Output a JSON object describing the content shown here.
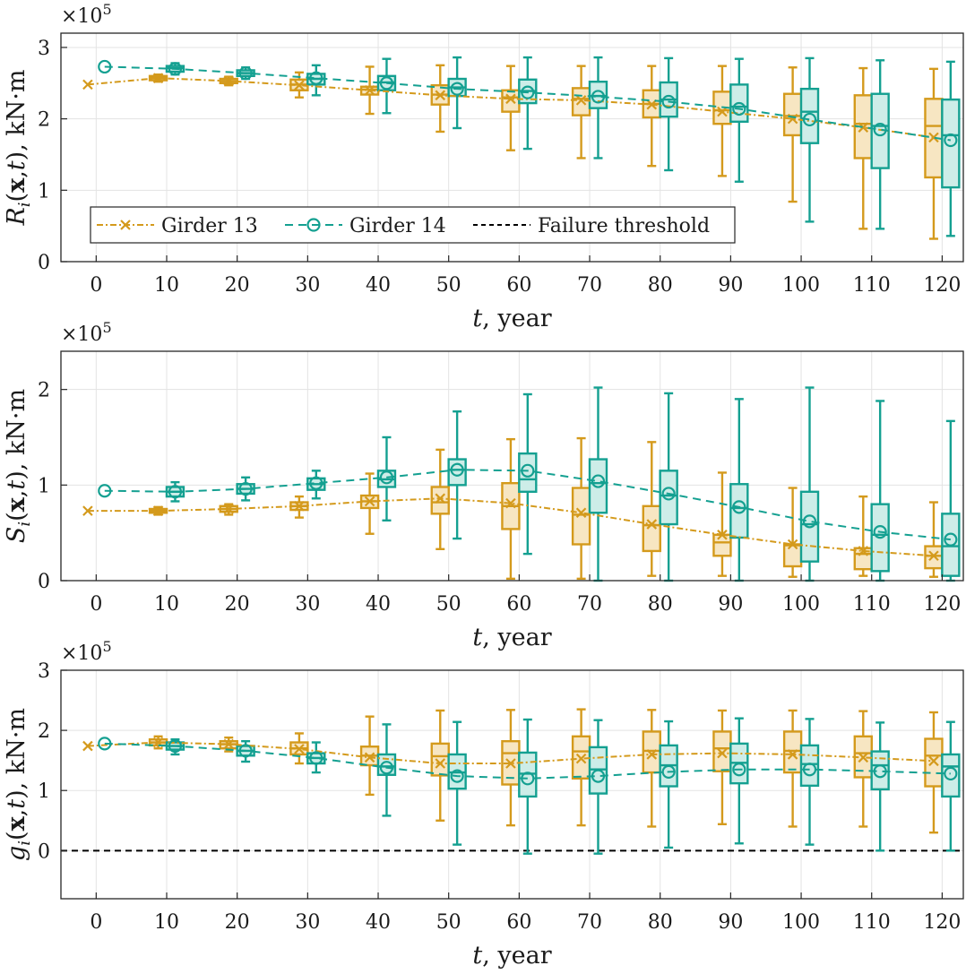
{
  "colors": {
    "girder13": "#D49A1C",
    "girder13_fill": "#F7E6C2",
    "girder14": "#14A091",
    "girder14_fill": "#CDEDE8",
    "threshold": "#000000",
    "grid": "#E3E3E3",
    "axis": "#262626"
  },
  "legend": {
    "girder13": "Girder 13",
    "girder14": "Girder 14",
    "threshold": "Failure threshold"
  },
  "chart_data": [
    {
      "type": "box",
      "id": "R",
      "ylabel_sym": "R",
      "ylabel_sub": "i",
      "ylabel_arg_open": "(",
      "ylabel_x": "x",
      "ylabel_t": "t",
      "ylabel_close": "),",
      "ylabel_unit": " kN·m",
      "exponent_base": "×10",
      "exponent_pow": "5",
      "xlabel_t": "t",
      "xlabel_rest": ", year",
      "xlim": [
        -5,
        123
      ],
      "ylim": [
        0,
        3.2
      ],
      "yticks": [
        0,
        1,
        2,
        3
      ],
      "yticklabels": [
        "0",
        "1",
        "2",
        "3"
      ],
      "xticks": [
        0,
        10,
        20,
        30,
        40,
        50,
        60,
        70,
        80,
        90,
        100,
        110,
        120
      ],
      "xticklabels": [
        "0",
        "10",
        "20",
        "30",
        "40",
        "50",
        "60",
        "70",
        "80",
        "90",
        "100",
        "110",
        "120"
      ],
      "threshold": null,
      "legend": true,
      "series": [
        {
          "name": "Girder 13",
          "marker": "x",
          "x": [
            -1.2,
            8.8,
            18.8,
            28.8,
            38.8,
            48.8,
            58.8,
            68.8,
            78.8,
            88.8,
            98.8,
            108.8,
            118.8
          ],
          "mean": [
            2.48,
            2.57,
            2.53,
            2.47,
            2.4,
            2.33,
            2.28,
            2.26,
            2.2,
            2.1,
            2.0,
            1.88,
            1.74
          ],
          "q1": [
            2.48,
            2.54,
            2.5,
            2.4,
            2.34,
            2.2,
            2.1,
            2.05,
            2.02,
            1.93,
            1.77,
            1.45,
            1.18
          ],
          "median": [
            2.48,
            2.57,
            2.53,
            2.48,
            2.41,
            2.34,
            2.3,
            2.28,
            2.21,
            2.12,
            2.04,
            1.93,
            1.9
          ],
          "q3": [
            2.48,
            2.6,
            2.56,
            2.55,
            2.45,
            2.47,
            2.4,
            2.43,
            2.4,
            2.38,
            2.35,
            2.33,
            2.28
          ],
          "lo": [
            2.48,
            2.52,
            2.47,
            2.3,
            2.07,
            1.82,
            1.56,
            1.45,
            1.34,
            1.2,
            0.84,
            0.46,
            0.32
          ],
          "hi": [
            2.48,
            2.62,
            2.59,
            2.65,
            2.73,
            2.75,
            2.74,
            2.74,
            2.74,
            2.74,
            2.72,
            2.71,
            2.7
          ]
        },
        {
          "name": "Girder 14",
          "marker": "o",
          "x": [
            1.2,
            11.2,
            21.2,
            31.2,
            41.2,
            51.2,
            61.2,
            71.2,
            81.2,
            91.2,
            101.2,
            111.2,
            121.2
          ],
          "mean": [
            2.73,
            2.7,
            2.64,
            2.57,
            2.5,
            2.42,
            2.37,
            2.31,
            2.24,
            2.14,
            1.99,
            1.85,
            1.7
          ],
          "q1": [
            2.73,
            2.66,
            2.6,
            2.48,
            2.4,
            2.32,
            2.22,
            2.15,
            2.03,
            1.96,
            1.66,
            1.31,
            1.04
          ],
          "median": [
            2.73,
            2.71,
            2.64,
            2.56,
            2.51,
            2.44,
            2.39,
            2.32,
            2.27,
            2.17,
            2.1,
            1.9,
            1.77
          ],
          "q3": [
            2.73,
            2.74,
            2.68,
            2.63,
            2.6,
            2.56,
            2.55,
            2.52,
            2.51,
            2.48,
            2.42,
            2.35,
            2.27
          ],
          "lo": [
            2.73,
            2.62,
            2.56,
            2.33,
            2.08,
            1.87,
            1.58,
            1.45,
            1.28,
            1.12,
            0.56,
            0.46,
            0.36
          ],
          "hi": [
            2.73,
            2.78,
            2.72,
            2.75,
            2.84,
            2.86,
            2.86,
            2.86,
            2.85,
            2.84,
            2.85,
            2.82,
            2.8
          ]
        }
      ]
    },
    {
      "type": "box",
      "id": "S",
      "ylabel_sym": "S",
      "ylabel_sub": "i",
      "ylabel_arg_open": "(",
      "ylabel_x": "x",
      "ylabel_t": "t",
      "ylabel_close": "),",
      "ylabel_unit": " kN·m",
      "exponent_base": "×10",
      "exponent_pow": "5",
      "xlabel_t": "t",
      "xlabel_rest": ", year",
      "xlim": [
        -5,
        123
      ],
      "ylim": [
        0,
        2.4
      ],
      "yticks": [
        0,
        1,
        2
      ],
      "yticklabels": [
        "0",
        "1",
        "2"
      ],
      "xticks": [
        0,
        10,
        20,
        30,
        40,
        50,
        60,
        70,
        80,
        90,
        100,
        110,
        120
      ],
      "xticklabels": [
        "0",
        "10",
        "20",
        "30",
        "40",
        "50",
        "60",
        "70",
        "80",
        "90",
        "100",
        "110",
        "120"
      ],
      "threshold": null,
      "legend": false,
      "series": [
        {
          "name": "Girder 13",
          "marker": "x",
          "x": [
            -1.2,
            8.8,
            18.8,
            28.8,
            38.8,
            48.8,
            58.8,
            68.8,
            78.8,
            88.8,
            98.8,
            108.8,
            118.8
          ],
          "mean": [
            0.73,
            0.73,
            0.75,
            0.78,
            0.83,
            0.86,
            0.81,
            0.71,
            0.59,
            0.48,
            0.38,
            0.31,
            0.26
          ],
          "q1": [
            0.73,
            0.71,
            0.72,
            0.74,
            0.76,
            0.7,
            0.54,
            0.38,
            0.31,
            0.26,
            0.15,
            0.12,
            0.13
          ],
          "median": [
            0.73,
            0.73,
            0.75,
            0.78,
            0.83,
            0.82,
            0.78,
            0.69,
            0.58,
            0.4,
            0.37,
            0.28,
            0.26
          ],
          "q3": [
            0.73,
            0.75,
            0.78,
            0.82,
            0.89,
            0.98,
            1.02,
            0.97,
            0.78,
            0.48,
            0.38,
            0.34,
            0.36
          ],
          "lo": [
            0.73,
            0.69,
            0.69,
            0.66,
            0.49,
            0.33,
            0.02,
            0.02,
            0.05,
            0.05,
            0.04,
            0.05,
            0.04
          ],
          "hi": [
            0.73,
            0.77,
            0.8,
            0.88,
            1.12,
            1.37,
            1.48,
            1.49,
            1.45,
            1.13,
            0.97,
            0.88,
            0.82
          ]
        },
        {
          "name": "Girder 14",
          "marker": "o",
          "x": [
            1.2,
            11.2,
            21.2,
            31.2,
            41.2,
            51.2,
            61.2,
            71.2,
            81.2,
            91.2,
            101.2,
            111.2,
            121.2
          ],
          "mean": [
            0.94,
            0.93,
            0.96,
            1.02,
            1.08,
            1.16,
            1.15,
            1.04,
            0.91,
            0.77,
            0.62,
            0.51,
            0.43
          ],
          "q1": [
            0.94,
            0.88,
            0.91,
            0.95,
            0.98,
            1.0,
            0.93,
            0.71,
            0.59,
            0.45,
            0.2,
            0.1,
            0.05
          ],
          "median": [
            0.94,
            0.93,
            0.96,
            1.01,
            1.06,
            1.16,
            1.06,
            1.02,
            0.89,
            0.76,
            0.59,
            0.48,
            0.36
          ],
          "q3": [
            0.94,
            0.98,
            1.01,
            1.07,
            1.15,
            1.27,
            1.33,
            1.27,
            1.15,
            1.01,
            0.93,
            0.8,
            0.7
          ],
          "lo": [
            0.94,
            0.83,
            0.84,
            0.86,
            0.63,
            0.44,
            0.28,
            0.0,
            0.0,
            0.0,
            0.0,
            0.0,
            0.0
          ],
          "hi": [
            0.94,
            1.03,
            1.08,
            1.15,
            1.5,
            1.77,
            1.95,
            2.02,
            1.96,
            1.9,
            2.02,
            1.88,
            1.67
          ]
        }
      ]
    },
    {
      "type": "box",
      "id": "g",
      "ylabel_sym": "g",
      "ylabel_sub": "i",
      "ylabel_arg_open": "(",
      "ylabel_x": "x",
      "ylabel_t": "t",
      "ylabel_close": "),",
      "ylabel_unit": " kN·m",
      "exponent_base": "×10",
      "exponent_pow": "5",
      "xlabel_t": "t",
      "xlabel_rest": ", year",
      "xlim": [
        -5,
        123
      ],
      "ylim": [
        -0.8,
        3
      ],
      "yticks": [
        0,
        1,
        2,
        3
      ],
      "yticklabels": [
        "0",
        "1",
        "2",
        "3"
      ],
      "xticks": [
        0,
        10,
        20,
        30,
        40,
        50,
        60,
        70,
        80,
        90,
        100,
        110,
        120
      ],
      "xticklabels": [
        "0",
        "10",
        "20",
        "30",
        "40",
        "50",
        "60",
        "70",
        "80",
        "90",
        "100",
        "110",
        "120"
      ],
      "threshold": 0,
      "legend": false,
      "series": [
        {
          "name": "Girder 13",
          "marker": "x",
          "x": [
            -1.2,
            8.8,
            18.8,
            28.8,
            38.8,
            48.8,
            58.8,
            68.8,
            78.8,
            88.8,
            98.8,
            108.8,
            118.8
          ],
          "mean": [
            1.74,
            1.8,
            1.77,
            1.69,
            1.55,
            1.45,
            1.45,
            1.53,
            1.6,
            1.62,
            1.6,
            1.55,
            1.49
          ],
          "q1": [
            1.74,
            1.75,
            1.7,
            1.6,
            1.42,
            1.25,
            1.1,
            1.2,
            1.3,
            1.32,
            1.3,
            1.22,
            1.07
          ],
          "median": [
            1.74,
            1.8,
            1.77,
            1.7,
            1.58,
            1.57,
            1.62,
            1.65,
            1.66,
            1.7,
            1.66,
            1.62,
            1.58
          ],
          "q3": [
            1.74,
            1.85,
            1.82,
            1.8,
            1.73,
            1.78,
            1.82,
            1.9,
            1.98,
            1.98,
            1.98,
            1.9,
            1.86
          ],
          "lo": [
            1.74,
            1.7,
            1.65,
            1.45,
            0.93,
            0.5,
            0.42,
            0.42,
            0.4,
            0.44,
            0.4,
            0.4,
            0.3
          ],
          "hi": [
            1.74,
            1.9,
            1.88,
            1.95,
            2.23,
            2.33,
            2.34,
            2.35,
            2.34,
            2.33,
            2.33,
            2.32,
            2.3
          ]
        },
        {
          "name": "Girder 14",
          "marker": "o",
          "x": [
            1.2,
            11.2,
            21.2,
            31.2,
            41.2,
            51.2,
            61.2,
            71.2,
            81.2,
            91.2,
            101.2,
            111.2,
            121.2
          ],
          "mean": [
            1.78,
            1.74,
            1.66,
            1.54,
            1.38,
            1.24,
            1.2,
            1.24,
            1.31,
            1.35,
            1.35,
            1.32,
            1.28
          ],
          "q1": [
            1.78,
            1.68,
            1.58,
            1.45,
            1.26,
            1.03,
            0.9,
            0.95,
            1.07,
            1.12,
            1.08,
            1.02,
            0.9
          ],
          "median": [
            1.78,
            1.74,
            1.66,
            1.54,
            1.4,
            1.3,
            1.28,
            1.35,
            1.42,
            1.46,
            1.44,
            1.42,
            1.4
          ],
          "q3": [
            1.78,
            1.8,
            1.74,
            1.62,
            1.6,
            1.6,
            1.63,
            1.72,
            1.75,
            1.78,
            1.75,
            1.65,
            1.6
          ],
          "lo": [
            1.78,
            1.6,
            1.48,
            1.3,
            0.58,
            0.1,
            -0.05,
            -0.05,
            0.05,
            0.12,
            0.1,
            0.0,
            0.0
          ],
          "hi": [
            1.78,
            1.85,
            1.82,
            1.8,
            2.1,
            2.14,
            2.18,
            2.17,
            2.15,
            2.2,
            2.19,
            2.13,
            2.14
          ]
        }
      ]
    }
  ]
}
